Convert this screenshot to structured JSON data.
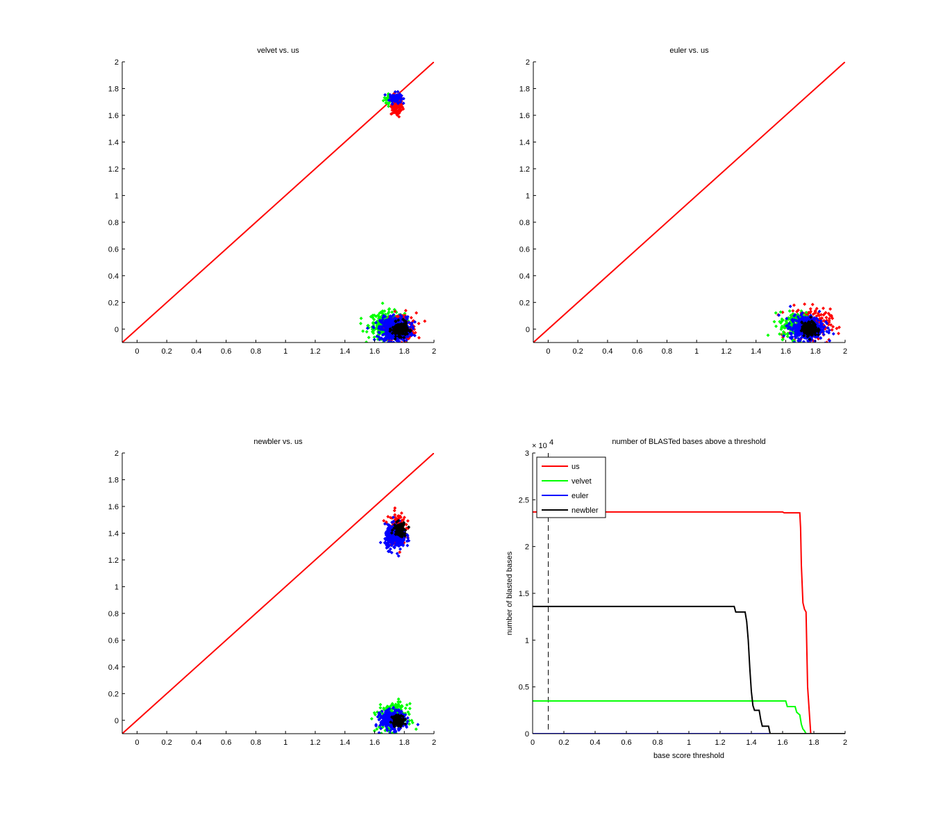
{
  "chart_data": [
    {
      "type": "scatter",
      "title": "velvet vs. us",
      "xlim": [
        -0.1,
        2
      ],
      "ylim": [
        -0.1,
        2
      ],
      "xticks": [
        "0",
        "0.2",
        "0.4",
        "0.6",
        "0.8",
        "1",
        "1.2",
        "1.4",
        "1.6",
        "1.8",
        "2"
      ],
      "yticks": [
        "0",
        "0.2",
        "0.4",
        "0.6",
        "0.8",
        "1",
        "1.2",
        "1.4",
        "1.6",
        "1.8",
        "2"
      ],
      "diagonal": {
        "from": [
          -0.1,
          -0.1
        ],
        "to": [
          2,
          2
        ],
        "color": "#ff0000"
      },
      "clusters": [
        {
          "color": "#00ff00",
          "cx": 1.7,
          "cy": 1.72,
          "sx": 0.02,
          "sy": 0.02,
          "n": 30
        },
        {
          "color": "#ff0000",
          "cx": 1.75,
          "cy": 1.67,
          "sx": 0.02,
          "sy": 0.04,
          "n": 120
        },
        {
          "color": "#0000ff",
          "cx": 1.74,
          "cy": 1.73,
          "sx": 0.02,
          "sy": 0.02,
          "n": 80
        },
        {
          "color": "#00ff00",
          "cx": 1.68,
          "cy": 0.03,
          "sx": 0.06,
          "sy": 0.05,
          "n": 250
        },
        {
          "color": "#ff0000",
          "cx": 1.78,
          "cy": 0.02,
          "sx": 0.05,
          "sy": 0.05,
          "n": 150
        },
        {
          "color": "#0000ff",
          "cx": 1.74,
          "cy": 0.0,
          "sx": 0.05,
          "sy": 0.045,
          "n": 500
        },
        {
          "color": "#000000",
          "cx": 1.77,
          "cy": 0.0,
          "sx": 0.025,
          "sy": 0.025,
          "n": 200
        }
      ]
    },
    {
      "type": "scatter",
      "title": "euler vs. us",
      "xlim": [
        -0.1,
        2
      ],
      "ylim": [
        -0.1,
        2
      ],
      "xticks": [
        "0",
        "0.2",
        "0.4",
        "0.6",
        "0.8",
        "1",
        "1.2",
        "1.4",
        "1.6",
        "1.8",
        "2"
      ],
      "yticks": [
        "0",
        "0.2",
        "0.4",
        "0.6",
        "0.8",
        "1",
        "1.2",
        "1.4",
        "1.6",
        "1.8",
        "2"
      ],
      "diagonal": {
        "from": [
          -0.1,
          -0.1
        ],
        "to": [
          2,
          2
        ],
        "color": "#ff0000"
      },
      "clusters": [
        {
          "color": "#ff0000",
          "cx": 1.76,
          "cy": 0.03,
          "sx": 0.07,
          "sy": 0.06,
          "n": 250
        },
        {
          "color": "#00ff00",
          "cx": 1.68,
          "cy": 0.03,
          "sx": 0.06,
          "sy": 0.05,
          "n": 200
        },
        {
          "color": "#0000ff",
          "cx": 1.74,
          "cy": 0.01,
          "sx": 0.055,
          "sy": 0.045,
          "n": 500
        },
        {
          "color": "#000000",
          "cx": 1.76,
          "cy": 0.0,
          "sx": 0.025,
          "sy": 0.025,
          "n": 200
        }
      ]
    },
    {
      "type": "scatter",
      "title": "newbler vs. us",
      "xlim": [
        -0.1,
        2
      ],
      "ylim": [
        -0.1,
        2
      ],
      "xticks": [
        "0",
        "0.2",
        "0.4",
        "0.6",
        "0.8",
        "1",
        "1.2",
        "1.4",
        "1.6",
        "1.8",
        "2"
      ],
      "yticks": [
        "0",
        "0.2",
        "0.4",
        "0.6",
        "0.8",
        "1",
        "1.2",
        "1.4",
        "1.6",
        "1.8",
        "2"
      ],
      "diagonal": {
        "from": [
          -0.1,
          -0.1
        ],
        "to": [
          2,
          2
        ],
        "color": "#ff0000"
      },
      "clusters": [
        {
          "color": "#ff0000",
          "cx": 1.75,
          "cy": 1.44,
          "sx": 0.03,
          "sy": 0.06,
          "n": 150
        },
        {
          "color": "#0000ff",
          "cx": 1.74,
          "cy": 1.37,
          "sx": 0.035,
          "sy": 0.045,
          "n": 300
        },
        {
          "color": "#000000",
          "cx": 1.77,
          "cy": 1.43,
          "sx": 0.02,
          "sy": 0.025,
          "n": 100
        },
        {
          "color": "#00ff00",
          "cx": 1.72,
          "cy": 0.02,
          "sx": 0.05,
          "sy": 0.05,
          "n": 250
        },
        {
          "color": "#0000ff",
          "cx": 1.72,
          "cy": 0.0,
          "sx": 0.04,
          "sy": 0.035,
          "n": 350
        },
        {
          "color": "#000000",
          "cx": 1.76,
          "cy": 0.0,
          "sx": 0.02,
          "sy": 0.02,
          "n": 120
        }
      ]
    },
    {
      "type": "line",
      "title": "number of BLASTed bases above a threshold",
      "xlabel": "base score threshold",
      "ylabel": "number of blasted bases",
      "y_exponent_label": "× 10",
      "y_exponent": "4",
      "xlim": [
        0,
        2
      ],
      "ylim": [
        0,
        3
      ],
      "xticks": [
        "0",
        "0.2",
        "0.4",
        "0.6",
        "0.8",
        "1",
        "1.2",
        "1.4",
        "1.6",
        "1.8",
        "2"
      ],
      "yticks": [
        "0",
        "0.5",
        "1",
        "1.5",
        "2",
        "2.5",
        "3"
      ],
      "legend_position": "top-left",
      "vline": {
        "x": 0.1,
        "style": "dashed",
        "color": "#000000"
      },
      "series": [
        {
          "name": "us",
          "color": "#ff0000",
          "x": [
            0,
            1.6,
            1.61,
            1.71,
            1.715,
            1.72,
            1.725,
            1.73,
            1.74,
            1.75,
            1.755,
            1.76,
            1.77,
            1.78,
            2
          ],
          "y": [
            2.37,
            2.37,
            2.36,
            2.36,
            2.2,
            1.8,
            1.6,
            1.4,
            1.33,
            1.3,
            0.9,
            0.5,
            0.25,
            0,
            0
          ]
        },
        {
          "name": "velvet",
          "color": "#00ff00",
          "x": [
            0,
            1.62,
            1.63,
            1.68,
            1.69,
            1.71,
            1.72,
            1.73,
            1.74,
            1.75,
            2
          ],
          "y": [
            0.35,
            0.35,
            0.29,
            0.29,
            0.23,
            0.2,
            0.1,
            0.05,
            0.03,
            0,
            0
          ]
        },
        {
          "name": "euler",
          "color": "#0000ff",
          "x": [
            0,
            2
          ],
          "y": [
            0,
            0
          ]
        },
        {
          "name": "newbler",
          "color": "#000000",
          "x": [
            0,
            1.29,
            1.3,
            1.36,
            1.37,
            1.38,
            1.39,
            1.4,
            1.41,
            1.42,
            1.45,
            1.46,
            1.47,
            1.51,
            1.52,
            2
          ],
          "y": [
            1.36,
            1.36,
            1.3,
            1.3,
            1.2,
            1.0,
            0.7,
            0.45,
            0.3,
            0.25,
            0.25,
            0.15,
            0.08,
            0.08,
            0,
            0
          ]
        }
      ]
    }
  ]
}
